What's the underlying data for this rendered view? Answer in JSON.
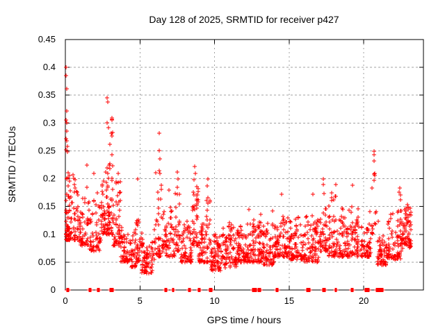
{
  "chart_data": {
    "type": "scatter",
    "title": "Day 128 of 2025, SRMTID for receiver p427",
    "xlabel": "GPS time / hours",
    "ylabel": "SRMTID / TECUs",
    "xlim": [
      0,
      24
    ],
    "ylim": [
      0,
      0.45
    ],
    "xticks": {
      "values": [
        0,
        5,
        10,
        15,
        20
      ],
      "labels": [
        "0",
        "5",
        "10",
        "15",
        "20"
      ]
    },
    "yticks": {
      "values": [
        0,
        0.05,
        0.1,
        0.15,
        0.2,
        0.25,
        0.3,
        0.35,
        0.4,
        0.45
      ],
      "labels": [
        "0",
        "0.05",
        "0.1",
        "0.15",
        "0.2",
        "0.25",
        "0.3",
        "0.35",
        "0.4",
        "0.45"
      ]
    },
    "grid": true,
    "legend": false,
    "marker": "plus",
    "colors": {
      "marker": "#ff0000",
      "grid": "#a0a0a0",
      "axis": "#000000",
      "text": "#000000",
      "background": "#ffffff"
    },
    "cluster_schema": [
      "x_start_hours",
      "x_end_hours",
      "n_points",
      "y_min_tecus",
      "y_max_tecus",
      "low_skew"
    ],
    "point_clusters": [
      [
        0.0,
        0.3,
        55,
        0.09,
        0.3,
        2.2
      ],
      [
        0.3,
        0.9,
        50,
        0.09,
        0.21,
        1.8
      ],
      [
        0.9,
        1.6,
        55,
        0.08,
        0.2,
        1.9
      ],
      [
        1.6,
        2.4,
        55,
        0.07,
        0.21,
        1.9
      ],
      [
        2.4,
        2.7,
        35,
        0.1,
        0.26,
        1.7
      ],
      [
        2.7,
        3.2,
        70,
        0.1,
        0.34,
        1.9
      ],
      [
        3.2,
        3.7,
        50,
        0.08,
        0.23,
        2.0
      ],
      [
        3.7,
        4.4,
        50,
        0.05,
        0.16,
        1.7
      ],
      [
        4.4,
        4.75,
        30,
        0.04,
        0.12,
        1.6
      ],
      [
        4.75,
        5.05,
        25,
        0.05,
        0.19,
        2.0
      ],
      [
        5.05,
        6.05,
        85,
        0.03,
        0.115,
        1.5
      ],
      [
        6.05,
        6.5,
        35,
        0.06,
        0.27,
        2.3
      ],
      [
        6.5,
        7.35,
        60,
        0.06,
        0.175,
        1.9
      ],
      [
        7.35,
        7.7,
        30,
        0.07,
        0.205,
        2.0
      ],
      [
        7.7,
        8.5,
        65,
        0.05,
        0.15,
        1.7
      ],
      [
        8.5,
        8.95,
        45,
        0.08,
        0.215,
        1.7
      ],
      [
        8.95,
        9.4,
        45,
        0.05,
        0.14,
        1.7
      ],
      [
        9.4,
        9.75,
        28,
        0.05,
        0.19,
        2.1
      ],
      [
        9.75,
        10.5,
        68,
        0.035,
        0.12,
        1.5
      ],
      [
        10.5,
        11.5,
        85,
        0.04,
        0.125,
        1.5
      ],
      [
        11.5,
        12.5,
        90,
        0.05,
        0.14,
        1.6
      ],
      [
        12.5,
        13.2,
        72,
        0.05,
        0.155,
        1.7
      ],
      [
        13.2,
        14.0,
        70,
        0.045,
        0.145,
        1.7
      ],
      [
        14.0,
        15.0,
        85,
        0.06,
        0.17,
        1.8
      ],
      [
        15.0,
        16.0,
        85,
        0.055,
        0.155,
        1.7
      ],
      [
        16.0,
        17.0,
        80,
        0.05,
        0.168,
        1.7
      ],
      [
        17.0,
        17.6,
        52,
        0.07,
        0.195,
        1.9
      ],
      [
        17.6,
        18.5,
        70,
        0.06,
        0.188,
        1.9
      ],
      [
        18.5,
        19.5,
        80,
        0.06,
        0.188,
        1.9
      ],
      [
        19.5,
        20.5,
        80,
        0.06,
        0.158,
        1.8
      ],
      [
        20.5,
        20.9,
        12,
        0.1,
        0.23,
        1.6
      ],
      [
        20.9,
        21.6,
        62,
        0.045,
        0.15,
        1.7
      ],
      [
        21.6,
        22.55,
        80,
        0.055,
        0.175,
        1.8
      ],
      [
        22.55,
        23.2,
        75,
        0.075,
        0.16,
        1.4
      ]
    ],
    "highlight_points": [
      [
        0.05,
        0.4
      ],
      [
        0.06,
        0.385
      ],
      [
        0.08,
        0.362
      ],
      [
        0.07,
        0.322
      ],
      [
        0.05,
        0.306
      ],
      [
        0.1,
        0.3
      ],
      [
        0.07,
        0.285
      ],
      [
        0.05,
        0.272
      ],
      [
        0.09,
        0.268
      ],
      [
        0.12,
        0.258
      ],
      [
        0.06,
        0.252
      ],
      [
        0.15,
        0.248
      ],
      [
        1.45,
        0.225
      ],
      [
        1.9,
        0.21
      ],
      [
        2.8,
        0.345
      ],
      [
        2.84,
        0.338
      ],
      [
        2.78,
        0.3
      ],
      [
        2.9,
        0.292
      ],
      [
        3.0,
        0.262
      ],
      [
        4.85,
        0.2
      ],
      [
        6.3,
        0.282
      ],
      [
        6.3,
        0.251
      ],
      [
        6.33,
        0.236
      ],
      [
        6.28,
        0.215
      ],
      [
        6.36,
        0.21
      ],
      [
        6.95,
        0.18
      ],
      [
        7.5,
        0.212
      ],
      [
        7.54,
        0.2
      ],
      [
        8.68,
        0.222
      ],
      [
        8.72,
        0.21
      ],
      [
        8.64,
        0.198
      ],
      [
        9.55,
        0.2
      ],
      [
        9.5,
        0.187
      ],
      [
        12.3,
        0.145
      ],
      [
        14.5,
        0.172
      ],
      [
        16.6,
        0.172
      ],
      [
        17.3,
        0.2
      ],
      [
        17.28,
        0.19
      ],
      [
        18.15,
        0.19
      ],
      [
        19.25,
        0.188
      ],
      [
        20.7,
        0.249
      ],
      [
        20.7,
        0.243
      ],
      [
        20.71,
        0.232
      ],
      [
        20.68,
        0.208
      ],
      [
        20.73,
        0.206
      ],
      [
        20.7,
        0.197
      ],
      [
        22.4,
        0.183
      ],
      [
        22.35,
        0.176
      ]
    ],
    "zero_value_times": [
      0.12,
      0.16,
      0.2,
      1.62,
      1.68,
      2.18,
      2.24,
      3.05,
      3.1,
      3.15,
      6.7,
      6.74,
      7.2,
      7.24,
      8.3,
      8.36,
      8.95,
      9.0,
      9.7,
      9.74,
      9.78,
      12.6,
      12.65,
      12.7,
      12.78,
      12.95,
      13.0,
      13.05,
      14.15,
      14.2,
      16.2,
      16.28,
      16.38,
      17.3,
      17.36,
      18.15,
      19.2,
      19.26,
      20.15,
      20.22,
      20.3,
      20.9,
      20.96,
      21.02,
      21.1,
      21.25
    ]
  }
}
